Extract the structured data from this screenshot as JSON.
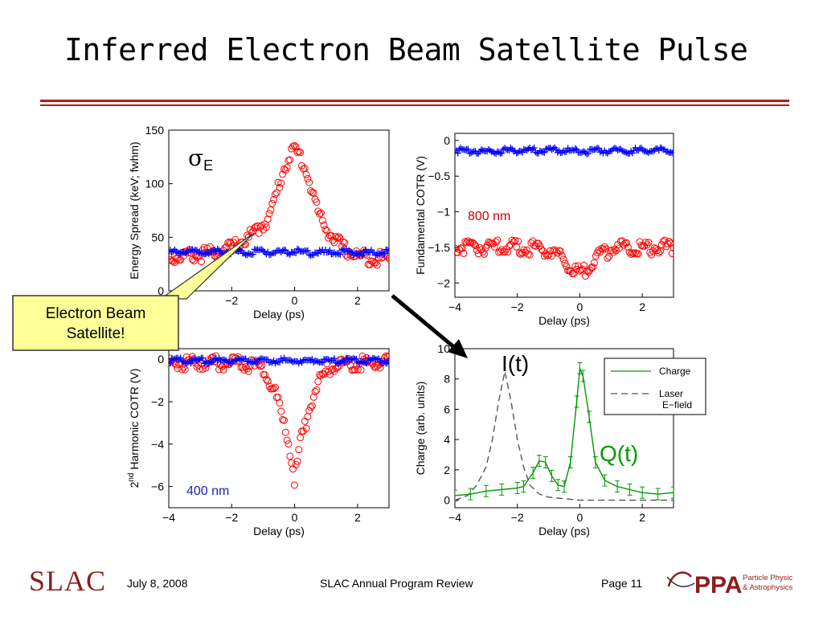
{
  "slide": {
    "title": "Inferred Electron Beam Satellite Pulse",
    "accent_color": "#c0151b"
  },
  "callout": {
    "text_line1": "Electron Beam",
    "text_line2": "Satellite!"
  },
  "annotations": {
    "sigma_e": "σE",
    "sigma_symbol": "σ",
    "sigma_sub": "E",
    "i_t": "I(t)",
    "q_t": "Q(t)",
    "nm800": "800 nm",
    "nm400": "400 nm"
  },
  "footer": {
    "logo": "SLAC",
    "date": "July 8, 2008",
    "event": "SLAC Annual Program Review",
    "page": "Page 11",
    "ppa_logo": "PPA",
    "ppa_line1": "Particle Physics",
    "ppa_line2": "& Astrophysics"
  },
  "chart_data": [
    {
      "type": "scatter",
      "xlabel": "Delay (ps)",
      "ylabel": "Energy Spread (keV; fwhm)",
      "xlim": [
        -4,
        3
      ],
      "ylim": [
        0,
        150
      ],
      "xticks": [
        "−2",
        "0",
        "2"
      ],
      "yticks": [
        "0",
        "50",
        "100",
        "150"
      ],
      "series": [
        {
          "marker": "o",
          "color": "#ff0000",
          "x": [
            -4,
            -3.5,
            -3,
            -2.5,
            -2,
            -1.5,
            -1.2,
            -1,
            -0.8,
            -0.6,
            -0.4,
            -0.2,
            0,
            0.2,
            0.4,
            0.6,
            0.8,
            1,
            1.3,
            1.6,
            2,
            2.5,
            3
          ],
          "y": [
            34,
            36,
            37,
            39,
            44,
            52,
            60,
            66,
            72,
            92,
            112,
            128,
            135,
            128,
            112,
            92,
            72,
            62,
            50,
            42,
            36,
            34,
            33
          ]
        },
        {
          "marker": "+",
          "color": "#0000ff",
          "x": [
            -4,
            -3.5,
            -3,
            -2.5,
            -2,
            -1.5,
            -1,
            -0.5,
            0,
            0.5,
            1,
            1.5,
            2,
            2.5,
            3
          ],
          "y": [
            37,
            38,
            37,
            38,
            38,
            37,
            38,
            37,
            38,
            37,
            37,
            38,
            37,
            37,
            38
          ]
        }
      ]
    },
    {
      "type": "scatter",
      "xlabel": "Delay (ps)",
      "ylabel": "Fundamental COTR (V)",
      "xlim": [
        -4,
        3
      ],
      "ylim": [
        -2.2,
        0.1
      ],
      "xticks": [
        "−4",
        "−2",
        "0",
        "2"
      ],
      "yticks": [
        "0",
        "−0.5",
        "−1",
        "−1.5",
        "−2"
      ],
      "series": [
        {
          "marker": "+",
          "color": "#0000ff",
          "x": [
            -4,
            -3.5,
            -3,
            -2.5,
            -2,
            -1.5,
            -1,
            -0.5,
            0,
            0.5,
            1,
            1.5,
            2,
            2.5,
            3
          ],
          "y": [
            -0.12,
            -0.12,
            -0.13,
            -0.12,
            -0.12,
            -0.12,
            -0.12,
            -0.12,
            -0.13,
            -0.12,
            -0.12,
            -0.12,
            -0.12,
            -0.12,
            -0.12
          ]
        },
        {
          "marker": "o",
          "color": "#ff0000",
          "x": [
            -4,
            -3.5,
            -3,
            -2.5,
            -2,
            -1.5,
            -1,
            -0.6,
            -0.3,
            0,
            0.3,
            0.6,
            1,
            1.5,
            2,
            2.5,
            3
          ],
          "y": [
            -1.45,
            -1.45,
            -1.45,
            -1.45,
            -1.45,
            -1.46,
            -1.48,
            -1.58,
            -1.72,
            -1.83,
            -1.72,
            -1.58,
            -1.48,
            -1.45,
            -1.45,
            -1.45,
            -1.45
          ]
        }
      ]
    },
    {
      "type": "scatter",
      "xlabel": "Delay (ps)",
      "ylabel": "2nd Harmonic COTR (V)",
      "ylabel_parts": {
        "pre": "2",
        "sup": "nd",
        "post": " Harmonic COTR  (V)"
      },
      "xlim": [
        -4,
        3
      ],
      "ylim": [
        -7,
        0.5
      ],
      "xticks": [
        "−4",
        "−2",
        "0",
        "2"
      ],
      "yticks": [
        "0",
        "−2",
        "−4",
        "−6"
      ],
      "series": [
        {
          "marker": "o",
          "color": "#ff0000",
          "x": [
            -4,
            -3,
            -2,
            -1.5,
            -1.2,
            -1,
            -0.8,
            -0.6,
            -0.4,
            -0.2,
            0,
            0.2,
            0.4,
            0.6,
            0.8,
            1,
            1.2,
            1.5,
            2,
            3
          ],
          "y": [
            0,
            0,
            0,
            -0.1,
            -0.2,
            -0.4,
            -0.8,
            -1.5,
            -2.6,
            -3.6,
            -5.5,
            -3.6,
            -2.6,
            -1.5,
            -0.8,
            -0.4,
            -0.2,
            -0.1,
            0,
            0
          ]
        },
        {
          "marker": "+",
          "color": "#0000ff",
          "x": [
            -4,
            -3.5,
            -3,
            -2.5,
            -2,
            -1.5,
            -1,
            -0.5,
            0,
            0.5,
            1,
            1.5,
            2,
            2.5,
            3
          ],
          "y": [
            0,
            0,
            0,
            0,
            0,
            0,
            0,
            0,
            0,
            0,
            0,
            0,
            0,
            0,
            0
          ]
        }
      ]
    },
    {
      "type": "line",
      "xlabel": "Delay (ps)",
      "ylabel": "Charge (arb. units)",
      "xlim": [
        -4,
        3
      ],
      "ylim": [
        -0.5,
        10
      ],
      "xticks": [
        "−4",
        "−2",
        "0",
        "2"
      ],
      "yticks": [
        "0",
        "2",
        "4",
        "6",
        "8",
        "10"
      ],
      "legend": "top-right",
      "series": [
        {
          "name": "Charge",
          "color": "#009900",
          "dash": "none",
          "x": [
            -4,
            -3.5,
            -3,
            -2.5,
            -2,
            -1.8,
            -1.5,
            -1.3,
            -1.1,
            -0.9,
            -0.7,
            -0.5,
            -0.3,
            -0.1,
            0,
            0.1,
            0.3,
            0.5,
            0.8,
            1.2,
            1.6,
            2,
            2.5,
            3
          ],
          "y": [
            0.3,
            0.4,
            0.6,
            0.7,
            0.8,
            0.9,
            1.8,
            2.6,
            2.5,
            1.6,
            1.0,
            0.9,
            2.5,
            6.5,
            8.7,
            8.2,
            5.5,
            2.5,
            1.3,
            0.9,
            0.7,
            0.5,
            0.4,
            0.5
          ]
        },
        {
          "name": "Laser E−field",
          "name_line1": "Laser",
          "name_line2": "E−field",
          "color": "#555555",
          "dash": "8,5",
          "x": [
            -4,
            -3.6,
            -3.3,
            -3,
            -2.8,
            -2.6,
            -2.4,
            -2.2,
            -2,
            -1.8,
            -1.6,
            -1.3,
            -1,
            -0.5,
            0,
            1,
            2,
            3
          ],
          "y": [
            0,
            0.3,
            1.0,
            2.2,
            4.0,
            6.5,
            8.5,
            6.5,
            4.0,
            2.2,
            1.0,
            0.4,
            0.2,
            0.1,
            0,
            0,
            0,
            0
          ]
        }
      ]
    }
  ]
}
